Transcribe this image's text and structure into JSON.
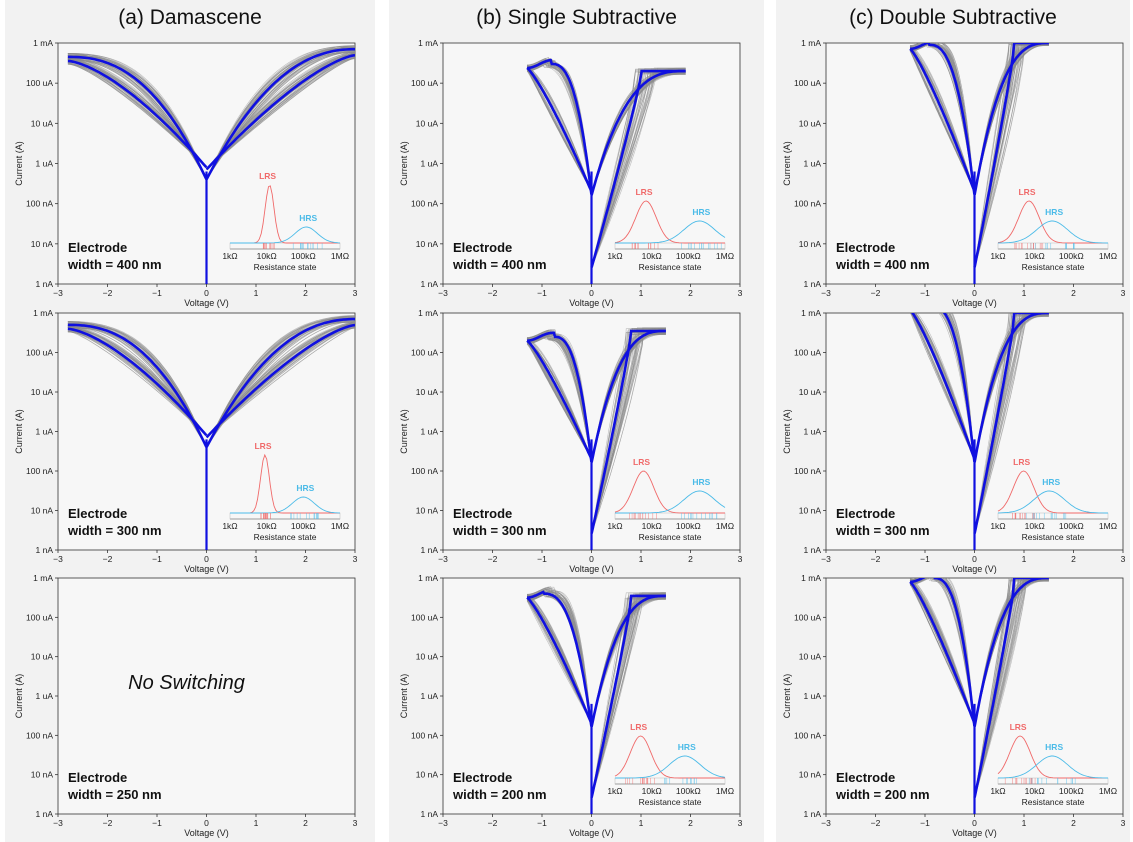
{
  "columns": [
    {
      "title": "(a) Damascene"
    },
    {
      "title": "(b) Single Subtractive"
    },
    {
      "title": "(c) Double Subtractive"
    }
  ],
  "axes": {
    "xlabel": "Voltage (V)",
    "ylabel": "Current (A)",
    "x_ticks": [
      "−3",
      "−2",
      "−1",
      "0",
      "1",
      "2",
      "3"
    ],
    "y_ticks": [
      "1 nA",
      "10 nA",
      "100 nA",
      "1 uA",
      "10 uA",
      "100 uA",
      "1 mA"
    ],
    "xlim": [
      -3,
      3
    ],
    "ylim_log10_A": [
      -9,
      -3
    ],
    "y_scale": "log"
  },
  "inset": {
    "xlabel": "Resistance state",
    "x_ticks": [
      "1kΩ",
      "10kΩ",
      "100kΩ",
      "1MΩ"
    ],
    "lrs_label": "LRS",
    "hrs_label": "HRS",
    "colors": {
      "lrs": "#f06a6a",
      "hrs": "#4bbbe8"
    }
  },
  "colors": {
    "median_curve": "#1010e0",
    "cycles": "#8c8c8c",
    "panel_bg": "#f7f7f7"
  },
  "chart_data": [
    {
      "type": "line",
      "title": "(a) Damascene",
      "panel": "a1",
      "electrode_line1": "Electrode",
      "electrode_line2": "width = 400 nm",
      "switching": true,
      "xlim": [
        -3,
        3
      ],
      "ylim": [
        1e-09,
        0.001
      ],
      "median_curve": {
        "x": [
          -2.5,
          -1.5,
          -0.5,
          0,
          0.5,
          1.5,
          3
        ],
        "y": [
          0.00045,
          0.0004,
          3e-05,
          1e-06,
          2e-05,
          0.0002,
          0.0007
        ]
      },
      "inset": {
        "lrs_peak_ohm": 12000.0,
        "hrs_peak_ohm": 120000.0
      }
    },
    {
      "type": "line",
      "title": "(a) Damascene",
      "panel": "a2",
      "electrode_line1": "Electrode",
      "electrode_line2": "width = 300 nm",
      "switching": true,
      "xlim": [
        -3,
        3
      ],
      "ylim": [
        1e-09,
        0.001
      ],
      "median_curve": {
        "x": [
          -2.7,
          -1.5,
          -0.5,
          0,
          0.5,
          1.5,
          3
        ],
        "y": [
          0.0005,
          0.0004,
          4e-05,
          1e-06,
          3e-05,
          0.00025,
          0.0007
        ]
      },
      "inset": {
        "lrs_peak_ohm": 9000.0,
        "hrs_peak_ohm": 100000.0
      }
    },
    {
      "type": "line",
      "title": "(a) Damascene",
      "panel": "a3",
      "electrode_line1": "Electrode",
      "electrode_line2": "width = 250 nm",
      "switching": false,
      "no_switching_text": "No Switching",
      "xlim": [
        -3,
        3
      ],
      "ylim": [
        1e-09,
        0.001
      ]
    },
    {
      "type": "line",
      "title": "(b) Single Subtractive",
      "panel": "b1",
      "electrode_line1": "Electrode",
      "electrode_line2": "width = 400 nm",
      "switching": true,
      "xlim": [
        -3,
        3
      ],
      "ylim": [
        1e-09,
        0.001
      ],
      "compliance_A": 0.0002,
      "median_curve": {
        "x": [
          -1.3,
          -0.8,
          -0.3,
          0,
          0.5,
          1.0,
          1.9
        ],
        "y": [
          0.0003,
          0.00025,
          2e-05,
          1e-06,
          1e-05,
          0.0001,
          0.0002
        ]
      },
      "inset": {
        "lrs_peak_ohm": 7000.0,
        "hrs_peak_ohm": 200000.0
      }
    },
    {
      "type": "line",
      "title": "(b) Single Subtractive",
      "panel": "b2",
      "electrode_line1": "Electrode",
      "electrode_line2": "width = 300 nm",
      "switching": true,
      "xlim": [
        -3,
        3
      ],
      "ylim": [
        1e-09,
        0.001
      ],
      "compliance_A": 0.00035,
      "median_curve": {
        "x": [
          -1.3,
          -0.8,
          -0.3,
          0,
          0.5,
          1.0,
          1.5
        ],
        "y": [
          0.00025,
          0.0003,
          1e-05,
          1e-06,
          5e-06,
          0.0001,
          0.00035
        ]
      },
      "inset": {
        "lrs_peak_ohm": 6000.0,
        "hrs_peak_ohm": 200000.0
      }
    },
    {
      "type": "line",
      "title": "(b) Single Subtractive",
      "panel": "b3",
      "electrode_line1": "Electrode",
      "electrode_line2": "width = 200 nm",
      "switching": true,
      "xlim": [
        -3,
        3
      ],
      "ylim": [
        1e-09,
        0.001
      ],
      "compliance_A": 0.00035,
      "median_curve": {
        "x": [
          -1.3,
          -0.8,
          -0.3,
          0,
          0.5,
          1.0,
          1.5
        ],
        "y": [
          0.0004,
          0.00035,
          1e-05,
          1e-06,
          5e-06,
          0.0001,
          0.00035
        ]
      },
      "inset": {
        "lrs_peak_ohm": 5000.0,
        "hrs_peak_ohm": 80000.0
      }
    },
    {
      "type": "line",
      "title": "(c) Double Subtractive",
      "panel": "c1",
      "electrode_line1": "Electrode",
      "electrode_line2": "width = 400 nm",
      "switching": true,
      "xlim": [
        -3,
        3
      ],
      "ylim": [
        1e-09,
        0.001
      ],
      "compliance_A": 0.001,
      "median_curve": {
        "x": [
          -1.3,
          -0.8,
          -0.3,
          0,
          0.5,
          1.0,
          1.5
        ],
        "y": [
          0.0009,
          0.0008,
          3e-05,
          1e-06,
          1e-05,
          0.0001,
          0.001
        ]
      },
      "inset": {
        "lrs_peak_ohm": 7000.0,
        "hrs_peak_ohm": 30000.0
      }
    },
    {
      "type": "line",
      "title": "(c) Double Subtractive",
      "panel": "c2",
      "electrode_line1": "Electrode",
      "electrode_line2": "width = 300 nm",
      "switching": true,
      "xlim": [
        -3,
        3
      ],
      "ylim": [
        1e-09,
        0.001
      ],
      "compliance_A": 0.001,
      "median_curve": {
        "x": [
          -1.3,
          -0.8,
          -0.3,
          0,
          0.5,
          1.0,
          1.5
        ],
        "y": [
          0.0015,
          0.0008,
          3e-05,
          1e-06,
          1e-05,
          0.0001,
          0.001
        ]
      },
      "inset": {
        "lrs_peak_ohm": 5000.0,
        "hrs_peak_ohm": 25000.0
      }
    },
    {
      "type": "line",
      "title": "(c) Double Subtractive",
      "panel": "c3",
      "electrode_line1": "Electrode",
      "electrode_line2": "width = 200 nm",
      "switching": true,
      "xlim": [
        -3,
        3
      ],
      "ylim": [
        1e-09,
        0.001
      ],
      "compliance_A": 0.001,
      "median_curve": {
        "x": [
          -1.3,
          -0.8,
          -0.3,
          0,
          0.5,
          1.0,
          1.5
        ],
        "y": [
          0.001,
          0.0008,
          3e-05,
          1e-06,
          1e-05,
          0.0001,
          0.001
        ]
      },
      "inset": {
        "lrs_peak_ohm": 4000.0,
        "hrs_peak_ohm": 30000.0
      }
    }
  ]
}
